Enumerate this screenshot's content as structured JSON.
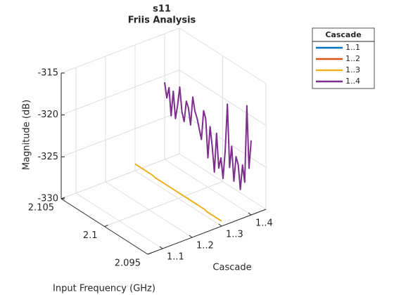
{
  "chart_data": {
    "type": "line3d",
    "title": "s11",
    "subtitle": "Friis Analysis",
    "x_label": "Input Frequency (GHz)",
    "y_label": "Cascade",
    "z_label": "Magnitude (dB)",
    "legend_title": "Cascade",
    "legend": "outside-top-right",
    "grid": true,
    "categories": [
      "1..1",
      "1..2",
      "1..3",
      "1..4"
    ],
    "xlim": [
      2.095,
      2.105
    ],
    "xticks": [
      2.095,
      2.1,
      2.105
    ],
    "zlim": [
      -330,
      -315
    ],
    "zticks": [
      -330,
      -325,
      -320,
      -315
    ],
    "x": [
      2.095,
      2.09525,
      2.0955,
      2.09575,
      2.096,
      2.09625,
      2.0965,
      2.09675,
      2.097,
      2.09725,
      2.0975,
      2.09775,
      2.098,
      2.09825,
      2.0985,
      2.09875,
      2.099,
      2.09925,
      2.0995,
      2.09975,
      2.1,
      2.10025,
      2.1005,
      2.10075,
      2.101,
      2.10125,
      2.1015,
      2.10175,
      2.102,
      2.10225,
      2.1025,
      2.10275,
      2.103,
      2.10325,
      2.1035,
      2.10375,
      2.104,
      2.10425,
      2.1045,
      2.10475,
      2.105
    ],
    "series": [
      {
        "name": "1..1",
        "color": "#0072bd",
        "values": [
          null,
          null,
          null,
          null,
          null,
          null,
          null,
          null,
          null,
          null,
          null,
          null,
          null,
          null,
          null,
          null,
          null,
          null,
          null,
          null,
          null,
          null,
          null,
          null,
          null,
          null,
          null,
          null,
          null,
          null,
          null,
          null,
          null,
          null,
          null,
          null,
          null,
          null,
          null,
          null,
          null
        ]
      },
      {
        "name": "1..2",
        "color": "#d95319",
        "values": [
          null,
          null,
          null,
          null,
          null,
          null,
          null,
          null,
          null,
          null,
          null,
          null,
          null,
          null,
          null,
          null,
          null,
          null,
          null,
          null,
          null,
          null,
          null,
          null,
          null,
          null,
          null,
          null,
          null,
          null,
          null,
          null,
          null,
          null,
          null,
          null,
          null,
          null,
          null,
          null,
          null
        ]
      },
      {
        "name": "1..3",
        "color": "#edb120",
        "values": [
          -329.4,
          -329.4,
          -329.4,
          -329.4,
          -329.4,
          -329.4,
          -329.4,
          -329.4,
          -329.3,
          -329.3,
          -329.3,
          -329.3,
          -329.3,
          -329.3,
          -329.3,
          -329.3,
          -329.3,
          -329.3,
          -329.3,
          -329.3,
          -329.3,
          -329.3,
          -329.3,
          -329.3,
          -329.3,
          -329.3,
          -329.3,
          -329.3,
          -329.3,
          -329.3,
          -329.3,
          -329.3,
          -329.2,
          -329.2,
          -329.2,
          -329.2,
          -329.2,
          -329.2,
          -329.2,
          -329.2,
          -329.2
        ]
      },
      {
        "name": "1..4",
        "color": "#7e2f8e",
        "values": [
          -321.1,
          -324.6,
          -317.3,
          -326.6,
          -324.7,
          -327.8,
          -325.0,
          -324.2,
          -327.3,
          -323.3,
          -326.0,
          -318.6,
          -324.3,
          -327.8,
          -325.5,
          -326.9,
          -322.9,
          -327.7,
          -324.9,
          -322.6,
          -326.5,
          -322.0,
          -321.2,
          -324.8,
          -323.7,
          -322.6,
          -321.9,
          -320.4,
          -323.9,
          -322.0,
          -321.4,
          -324.0,
          -323.0,
          -320.2,
          -322.5,
          -324.3,
          -321.2,
          -324.3,
          -321.1,
          -322.5,
          -320.8
        ]
      }
    ]
  }
}
